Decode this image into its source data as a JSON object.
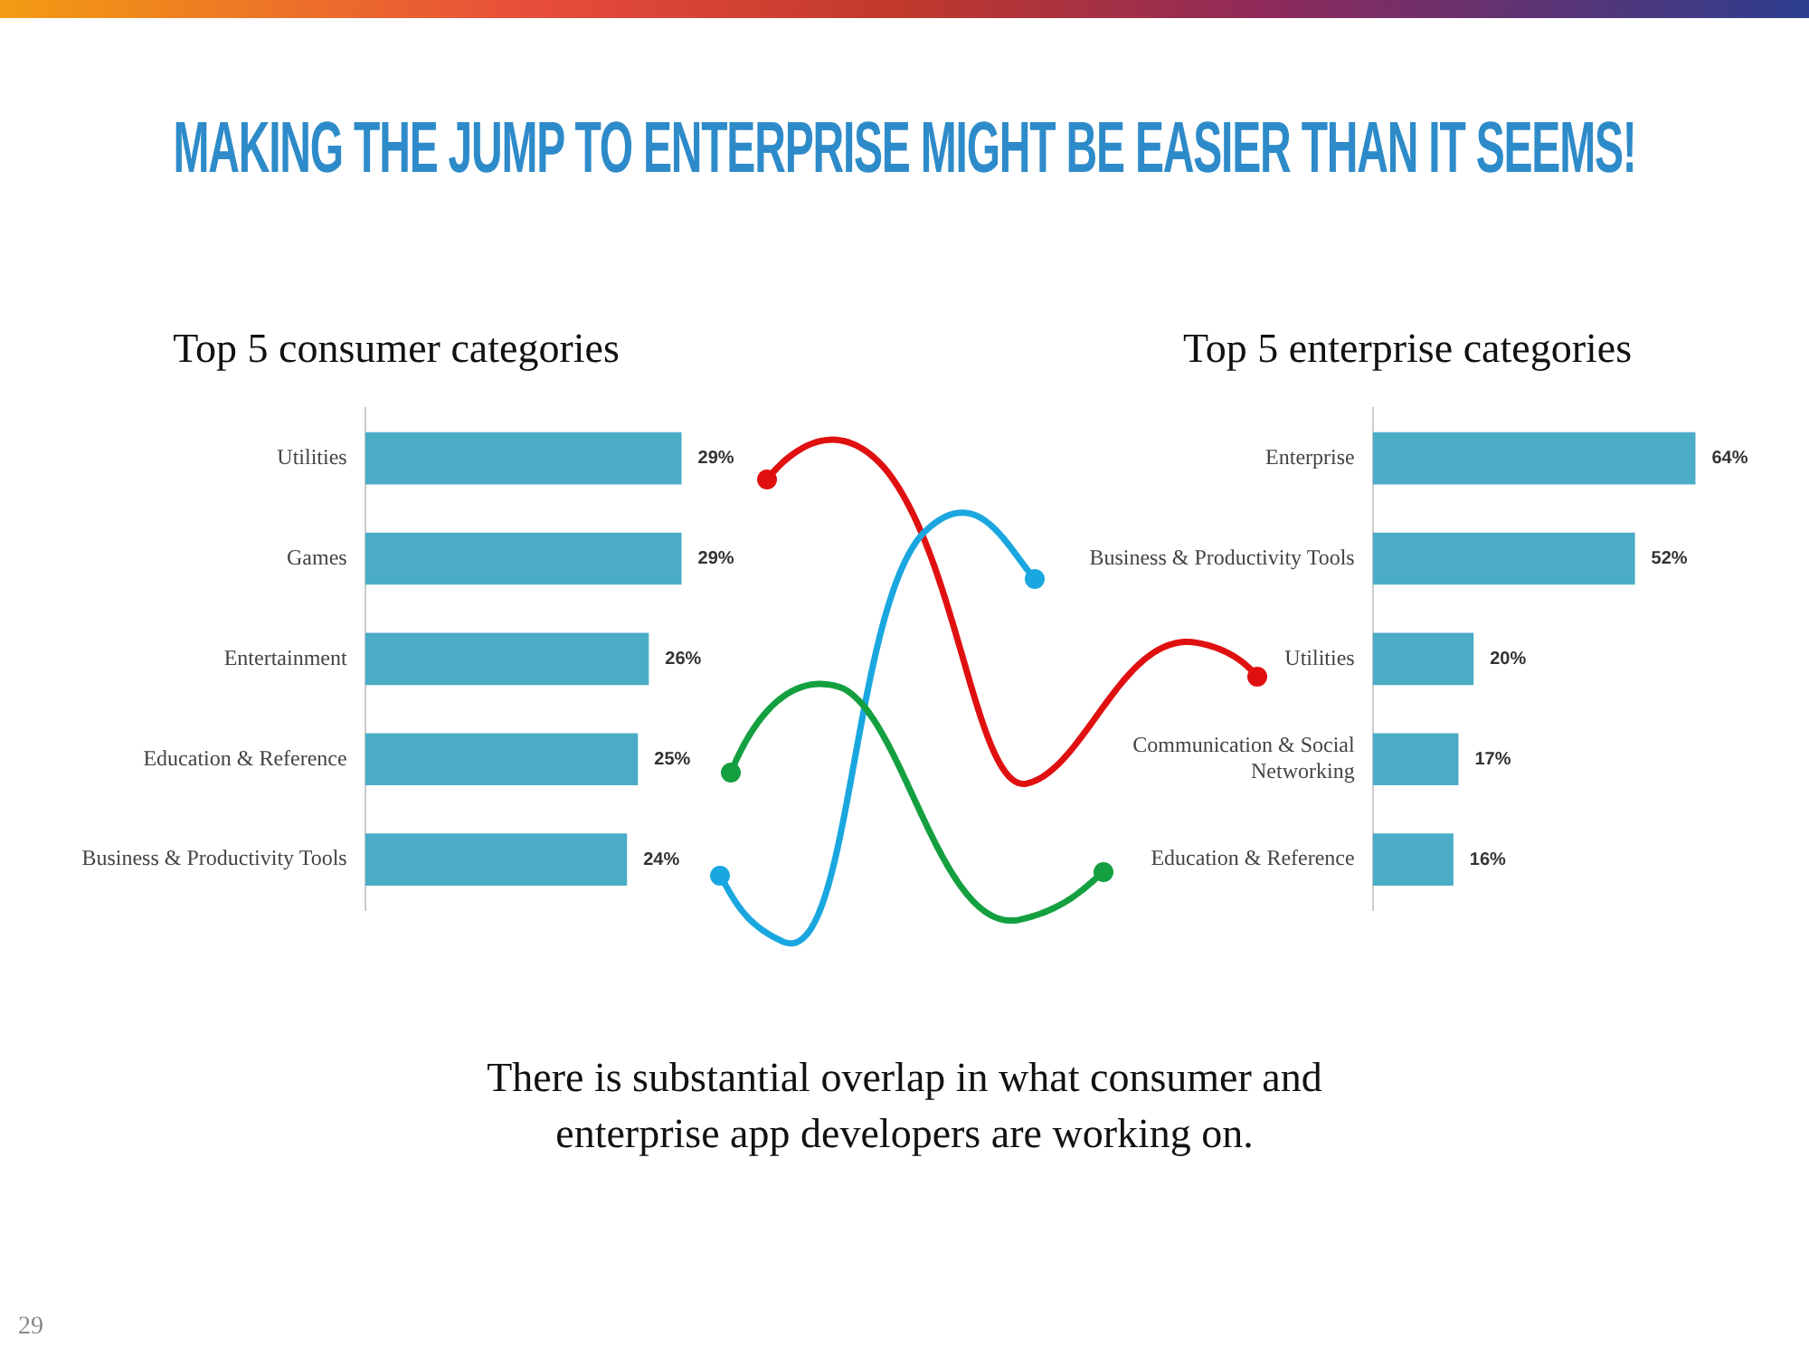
{
  "chart_data": [
    {
      "type": "other",
      "title": "MAKING THE JUMP TO ENTERPRISE MIGHT BE EASIER THAN IT SEEMS!",
      "annotations": [
        "There is substantial overlap in what consumer and enterprise app developers are working on.",
        "29"
      ]
    },
    {
      "type": "bar",
      "orientation": "horizontal",
      "title": "Top 5 consumer categories",
      "categories": [
        "Utilities",
        "Games",
        "Entertainment",
        "Education & Reference",
        "Business & Productivity Tools"
      ],
      "values": [
        29,
        29,
        26,
        25,
        24
      ],
      "value_labels": [
        "29%",
        "29%",
        "26%",
        "25%",
        "24%"
      ],
      "color": "#4bacc6",
      "tick_labels": "y"
    },
    {
      "type": "bar",
      "orientation": "horizontal",
      "title": "Top 5 enterprise categories",
      "categories": [
        "Enterprise",
        "Business & Productivity Tools",
        "Utilities",
        "Communication & Social\nNetworking",
        "Education & Reference"
      ],
      "values": [
        64,
        52,
        20,
        17,
        16
      ],
      "value_labels": [
        "64%",
        "52%",
        "20%",
        "17%",
        "16%"
      ],
      "color": "#4bacc6",
      "tick_labels": "y"
    }
  ]
}
